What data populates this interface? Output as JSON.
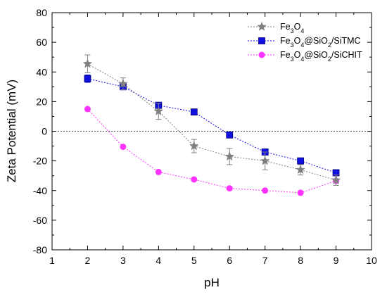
{
  "chart_data": {
    "type": "line",
    "title": "",
    "xlabel": "pH",
    "ylabel": "Zeta Potential (mV)",
    "xlim": [
      1,
      10
    ],
    "ylim": [
      -80,
      80
    ],
    "xticks": [
      "1",
      "2",
      "3",
      "4",
      "5",
      "6",
      "7",
      "8",
      "9",
      "10"
    ],
    "yticks": [
      "80",
      "60",
      "40",
      "20",
      "0",
      "-20",
      "-40",
      "-60",
      "-80"
    ],
    "zero_reference_line": true,
    "grid": false,
    "legend_position": "top-right",
    "series": [
      {
        "name_parts": [
          [
            "Fe",
            "n"
          ],
          [
            "3",
            "sub"
          ],
          [
            "O",
            "n"
          ],
          [
            "4",
            "sub"
          ]
        ],
        "color": "#808080",
        "marker": "star",
        "line_style": "dotted",
        "x": [
          2,
          3,
          4,
          5,
          6,
          7,
          8,
          9
        ],
        "y": [
          45.5,
          32,
          13.5,
          -10,
          -17,
          -20,
          -26,
          -33
        ],
        "error": [
          6,
          4,
          5.5,
          4.5,
          5.5,
          6,
          3.5,
          3.5
        ]
      },
      {
        "name_parts": [
          [
            "Fe",
            "n"
          ],
          [
            "3",
            "sub"
          ],
          [
            "O",
            "n"
          ],
          [
            "4",
            "sub"
          ],
          [
            "@SiO",
            "n"
          ],
          [
            "2",
            "sub"
          ],
          [
            "/SiTMC",
            "n"
          ]
        ],
        "color": "#1010e0",
        "marker": "square",
        "line_style": "dotted",
        "x": [
          2,
          3,
          4,
          5,
          6,
          7,
          8,
          9
        ],
        "y": [
          35.5,
          30,
          17.5,
          13,
          -2.5,
          -14,
          -20,
          -28
        ],
        "error": [
          2.5,
          1.5,
          2,
          0,
          0,
          0,
          0,
          0
        ]
      },
      {
        "name_parts": [
          [
            "Fe",
            "n"
          ],
          [
            "3",
            "sub"
          ],
          [
            "O",
            "n"
          ],
          [
            "4",
            "sub"
          ],
          [
            "@SiO",
            "n"
          ],
          [
            "2",
            "sub"
          ],
          [
            "/SiCHIT",
            "n"
          ]
        ],
        "color": "#ff33ff",
        "marker": "circle",
        "line_style": "dotted",
        "x": [
          2,
          3,
          4,
          5,
          6,
          7,
          8,
          9
        ],
        "y": [
          15,
          -10.5,
          -27.5,
          -32.5,
          -38.5,
          -40,
          -41.5,
          -33.5
        ],
        "error": [
          0,
          0,
          0,
          0,
          0,
          0,
          0,
          0
        ]
      }
    ]
  }
}
